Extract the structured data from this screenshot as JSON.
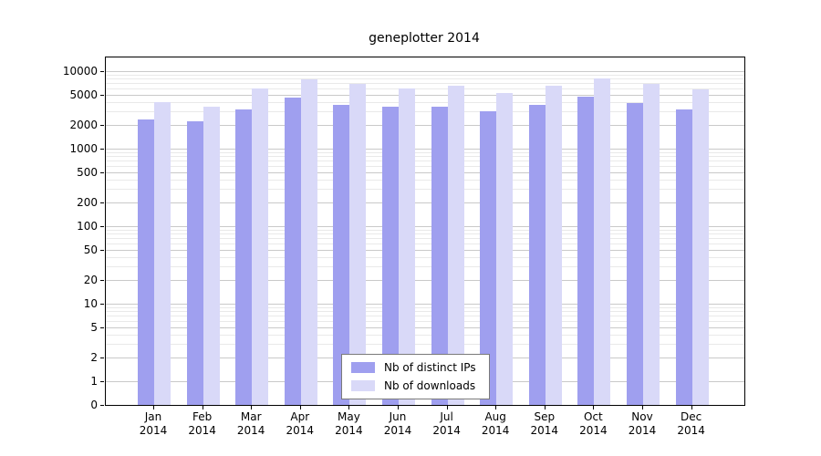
{
  "chart_data": {
    "type": "bar",
    "title": "geneplotter 2014",
    "categories": [
      "Jan",
      "Feb",
      "Mar",
      "Apr",
      "May",
      "Jun",
      "Jul",
      "Aug",
      "Sep",
      "Oct",
      "Nov",
      "Dec"
    ],
    "year": "2014",
    "series": [
      {
        "name": "Nb of distinct IPs",
        "color": "#9f9fef",
        "values": [
          2400,
          2250,
          3200,
          4500,
          3700,
          3500,
          3500,
          3000,
          3700,
          4700,
          3900,
          3200
        ]
      },
      {
        "name": "Nb of downloads",
        "color": "#d9d9f8",
        "values": [
          4000,
          3500,
          6000,
          7800,
          6900,
          5900,
          6500,
          5200,
          6500,
          8100,
          6900,
          5800
        ]
      }
    ],
    "y_ticks": [
      0,
      1,
      2,
      5,
      10,
      20,
      50,
      100,
      200,
      500,
      1000,
      2000,
      5000,
      10000
    ],
    "y_scale": "log",
    "ylim": [
      0,
      10000
    ],
    "grid": true,
    "legend_position": "bottom-center"
  }
}
